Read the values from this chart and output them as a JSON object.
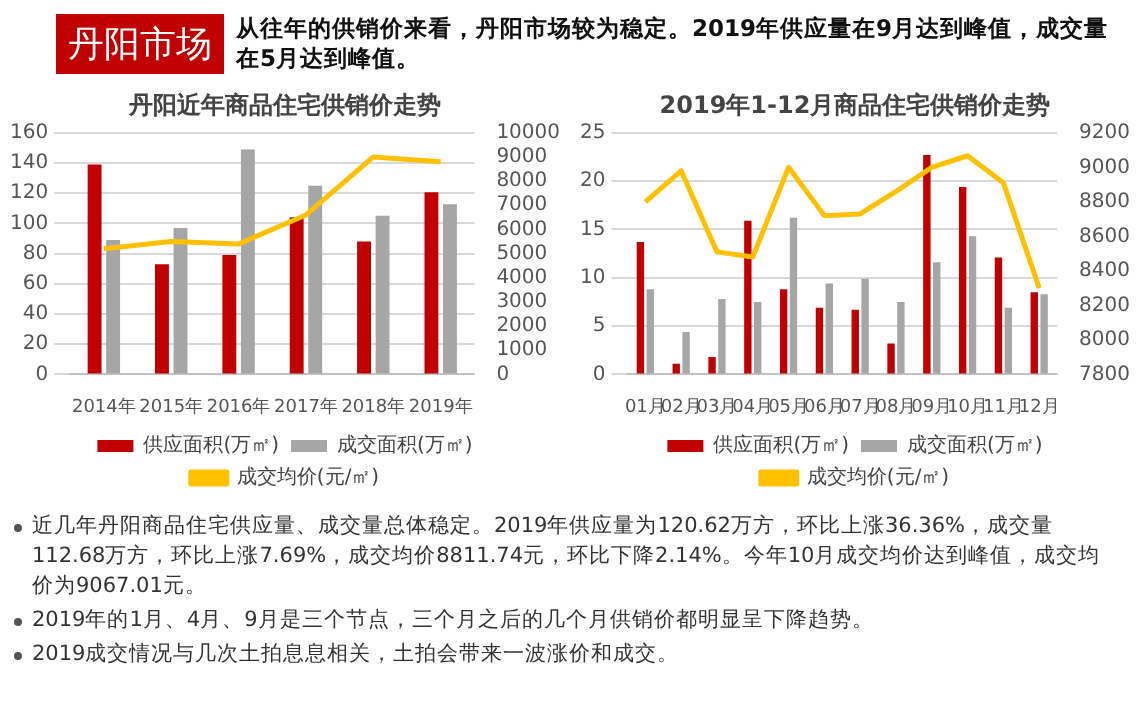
{
  "chart_data": [
    {
      "type": "other",
      "title": "丹阳市场",
      "subtitle": "从往年的供销价来看，丹阳市场较为稳定。2019年供应量在9月达到峰值，成交量在5月达到峰值。"
    },
    {
      "type": "bar",
      "title": "丹阳近年商品住宅供销价走势",
      "categories": [
        "2014年",
        "2015年",
        "2016年",
        "2017年",
        "2018年",
        "2019年"
      ],
      "series": [
        {
          "name": "供应面积(万㎡)",
          "color": "#c00000",
          "values": [
            139,
            73,
            79,
            104,
            88,
            120.62
          ]
        },
        {
          "name": "成交面积(万㎡)",
          "color": "#a6a6a6",
          "values": [
            89,
            97,
            149,
            125,
            105,
            112.68
          ]
        },
        {
          "name": "成交均价(元/㎡)",
          "type": "line",
          "axis": "y2",
          "color": "#ffc000",
          "values": [
            5200,
            5500,
            5400,
            6600,
            9000,
            8800
          ]
        }
      ],
      "ylim": [
        0,
        160
      ],
      "yticks": [
        0,
        20,
        40,
        60,
        80,
        100,
        120,
        140,
        160
      ],
      "y2lim": [
        0,
        10000
      ],
      "y2ticks": [
        0,
        1000,
        2000,
        3000,
        4000,
        5000,
        6000,
        7000,
        8000,
        9000,
        10000
      ],
      "grid": "y",
      "legend": "bottom",
      "marker": "none"
    },
    {
      "type": "bar",
      "title": "2019年1-12月商品住宅供销价走势",
      "categories": [
        "01月",
        "02月",
        "03月",
        "04月",
        "05月",
        "06月",
        "07月",
        "08月",
        "09月",
        "10月",
        "11月",
        "12月"
      ],
      "series": [
        {
          "name": "供应面积(万㎡)",
          "color": "#c00000",
          "values": [
            13.7,
            1.1,
            1.8,
            15.9,
            8.8,
            6.9,
            6.7,
            3.2,
            22.7,
            19.4,
            12.1,
            8.5
          ]
        },
        {
          "name": "成交面积(万㎡)",
          "color": "#a6a6a6",
          "values": [
            8.8,
            4.4,
            7.8,
            7.5,
            16.2,
            9.4,
            9.9,
            7.5,
            11.6,
            14.3,
            6.9,
            8.3
          ]
        },
        {
          "name": "成交均价(元/㎡)",
          "type": "line",
          "axis": "y2",
          "color": "#ffc000",
          "values": [
            8800,
            8980,
            8510,
            8480,
            9000,
            8720,
            8730,
            8860,
            9000,
            9067.01,
            8910,
            8300
          ]
        }
      ],
      "ylim": [
        0,
        25
      ],
      "yticks": [
        0,
        5,
        10,
        15,
        20,
        25
      ],
      "y2lim": [
        7800,
        9200
      ],
      "y2ticks": [
        7800,
        8000,
        8200,
        8400,
        8600,
        8800,
        9000,
        9200
      ],
      "grid": "y",
      "legend": "bottom",
      "marker": "none"
    },
    {
      "type": "other",
      "annotations": [
        "近几年丹阳商品住宅供应量、成交量总体稳定。2019年供应量为120.62万方，环比上涨36.36%，成交量112.68万方，环比上涨7.69%，成交均价8811.74元，环比下降2.14%。今年10月成交均价达到峰值，成交均价为9067.01元。",
        "2019年的1月、4月、9月是三个节点，三个月之后的几个月供销价都明显呈下降趋势。",
        "2019成交情况与几次土拍息息相关，土拍会带来一波涨价和成交。"
      ]
    }
  ]
}
